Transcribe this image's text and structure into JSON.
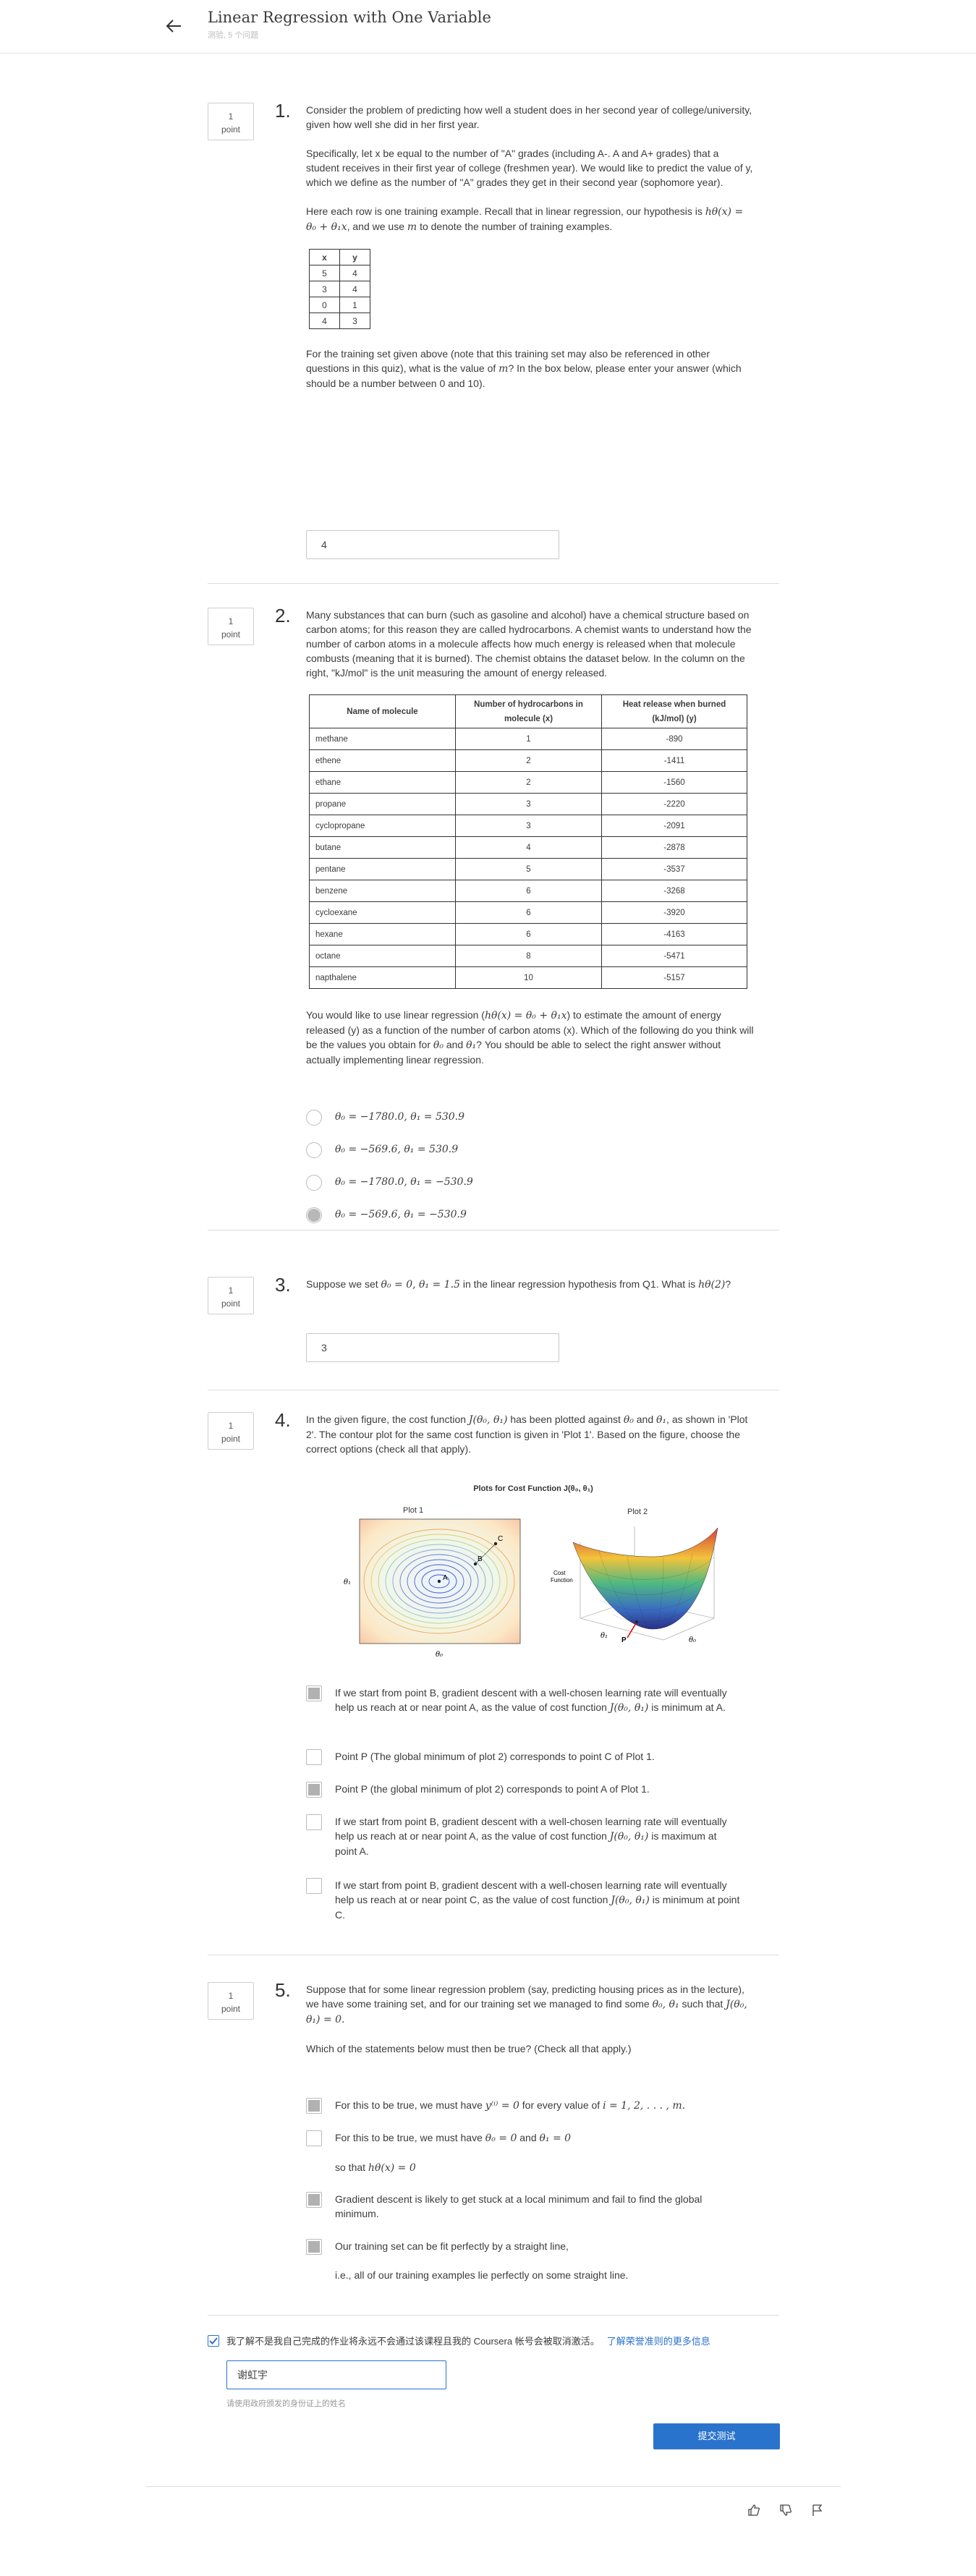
{
  "header": {
    "title": "Linear Regression with One Variable",
    "subtitle": "测验, 5 个问题"
  },
  "points_label": "point",
  "points_value": "1",
  "q1": {
    "number": "1.",
    "p1": "Consider the problem of predicting how well a student does in her second year of college/university, given how well she did in her first year.",
    "p2": "Specifically, let x be equal to the number of \"A\" grades (including A-. A and A+ grades) that a student receives in their first year of college (freshmen year). We would like to predict the value of y, which we define as the number of \"A\" grades they get in their second year (sophomore year).",
    "p3a": "Here each row is one training example. Recall that in linear regression, our hypothesis is",
    "p3_formula": "hθ(x) = θ₀ + θ₁x",
    "p3b": ", and we use",
    "p3_m": "m",
    "p3c": "to denote the number of training examples.",
    "table_headers": [
      "x",
      "y"
    ],
    "table_rows": [
      [
        "5",
        "4"
      ],
      [
        "3",
        "4"
      ],
      [
        "0",
        "1"
      ],
      [
        "4",
        "3"
      ]
    ],
    "p4a": "For the training set given above (note that this training set may also be referenced in other questions in this quiz), what is the value of",
    "p4_m": "m",
    "p4b": "? In the box below, please enter your answer (which should be a number between 0 and 10).",
    "answer": "4"
  },
  "q2": {
    "number": "2.",
    "p1": "Many substances that can burn (such as gasoline and alcohol) have a chemical structure based on carbon atoms; for this reason they are called hydrocarbons. A chemist wants to understand how the number of carbon atoms in a molecule affects how much energy is released when that molecule combusts (meaning that it is burned). The chemist obtains the dataset below. In the column on the right, \"kJ/mol\" is the unit measuring the amount of energy released.",
    "table_headers": [
      "Name of molecule",
      "Number of hydrocarbons in molecule (x)",
      "Heat release when burned (kJ/mol) (y)"
    ],
    "table_rows": [
      [
        "methane",
        "1",
        "-890"
      ],
      [
        "ethene",
        "2",
        "-1411"
      ],
      [
        "ethane",
        "2",
        "-1560"
      ],
      [
        "propane",
        "3",
        "-2220"
      ],
      [
        "cyclopropane",
        "3",
        "-2091"
      ],
      [
        "butane",
        "4",
        "-2878"
      ],
      [
        "pentane",
        "5",
        "-3537"
      ],
      [
        "benzene",
        "6",
        "-3268"
      ],
      [
        "cycloexane",
        "6",
        "-3920"
      ],
      [
        "hexane",
        "6",
        "-4163"
      ],
      [
        "octane",
        "8",
        "-5471"
      ],
      [
        "napthalene",
        "10",
        "-5157"
      ]
    ],
    "p2a": "You would like to use linear regression (",
    "p2_formula": "hθ(x) = θ₀ + θ₁x",
    "p2b": ") to estimate the amount of energy released (y) as a function of the number of carbon atoms (x). Which of the following do you think will be the values you obtain for",
    "p2_t0": "θ₀",
    "p2c": "and",
    "p2_t1": "θ₁",
    "p2d": "? You should be able to select the right answer without actually implementing linear regression.",
    "options": [
      "θ₀ = −1780.0, θ₁ = 530.9",
      "θ₀ = −569.6, θ₁ = 530.9",
      "θ₀ = −1780.0, θ₁ = −530.9",
      "θ₀ = −569.6, θ₁ = −530.9"
    ]
  },
  "q3": {
    "number": "3.",
    "p1a": "Suppose we set",
    "p1_formula": "θ₀ = 0, θ₁ = 1.5",
    "p1b": "in the linear regression hypothesis from Q1. What is",
    "p1_h": "hθ(2)",
    "p1c": "?",
    "answer": "3"
  },
  "q4": {
    "number": "4.",
    "p1a": "In the given figure, the cost function",
    "p1_J": "J(θ₀, θ₁)",
    "p1b": "has been plotted against",
    "p1_t0": "θ₀",
    "p1c": "and",
    "p1_t1": "θ₁",
    "p1d": ", as shown in 'Plot 2'. The contour plot for the same cost function is given in 'Plot 1'. Based on the figure, choose the correct options (check all that apply).",
    "figure": {
      "title": "Plots for Cost Function J(θ₀, θ₁)",
      "plot1_title": "Plot 1",
      "plot2_title": "Plot 2",
      "plot1_xlabel": "θ₀",
      "plot1_ylabel": "θ₁",
      "plot2_zlabel_1": "Cost",
      "plot2_zlabel_2": "Function",
      "plot2_xlabel": "θ₀",
      "plot2_ylabel": "θ₁",
      "point_a": "A",
      "point_b": "B",
      "point_c": "C",
      "point_p": "P"
    },
    "options": [
      {
        "a": "If we start from point B, gradient descent with a well-chosen learning rate will eventually help us reach at or near point A, as the value of cost function",
        "f": "J(θ₀, θ₁)",
        "b": "is minimum at A."
      },
      {
        "a": "Point P (The global minimum of plot 2) corresponds to point C of Plot 1.",
        "f": "",
        "b": ""
      },
      {
        "a": "Point P (the global minimum of plot 2) corresponds to point A of Plot 1.",
        "f": "",
        "b": ""
      },
      {
        "a": "If we start from point B, gradient descent with a well-chosen learning rate will eventually help us reach at or near point A, as the value of cost function",
        "f": "J(θ₀, θ₁)",
        "b": "is maximum at point A."
      },
      {
        "a": "If we start from point B, gradient descent with a well-chosen learning rate will eventually help us reach at or near point C, as the value of cost function",
        "f": "J(θ₀, θ₁)",
        "b": "is minimum at point C."
      }
    ]
  },
  "q5": {
    "number": "5.",
    "p1a": "Suppose that for some linear regression problem (say, predicting housing prices as in the lecture), we have some training set, and for our training set we managed to find some",
    "p1_t": "θ₀, θ₁",
    "p1b": "such that",
    "p1_J": "J(θ₀, θ₁) = 0.",
    "p2": "Which of the statements below must then be true? (Check all that apply.)",
    "opt1a": "For this to be true, we must have",
    "opt1_f1": "y⁽ⁱ⁾ = 0",
    "opt1b": "for every value of",
    "opt1_f2": "i = 1, 2, . . . , m.",
    "opt2a": "For this to be true, we must have",
    "opt2_f1": "θ₀ = 0",
    "opt2b": "and",
    "opt2_f2": "θ₁ = 0",
    "opt2c": "so that",
    "opt2_f3": "hθ(x) = 0",
    "opt3": "Gradient descent is likely to get stuck at a local minimum and fail to find the global minimum.",
    "opt4": "Our training set can be fit perfectly by a straight line,",
    "opt4b": "i.e., all of our training examples lie perfectly on some straight line."
  },
  "honor": {
    "text": "我了解不是我自己完成的作业将永远不会通过该课程且我的 Coursera 帐号会被取消激活。",
    "link": "了解荣誉准则的更多信息",
    "signature": "谢虹宇",
    "hint": "请使用政府颁发的身份证上的姓名",
    "submit": "提交测试"
  }
}
